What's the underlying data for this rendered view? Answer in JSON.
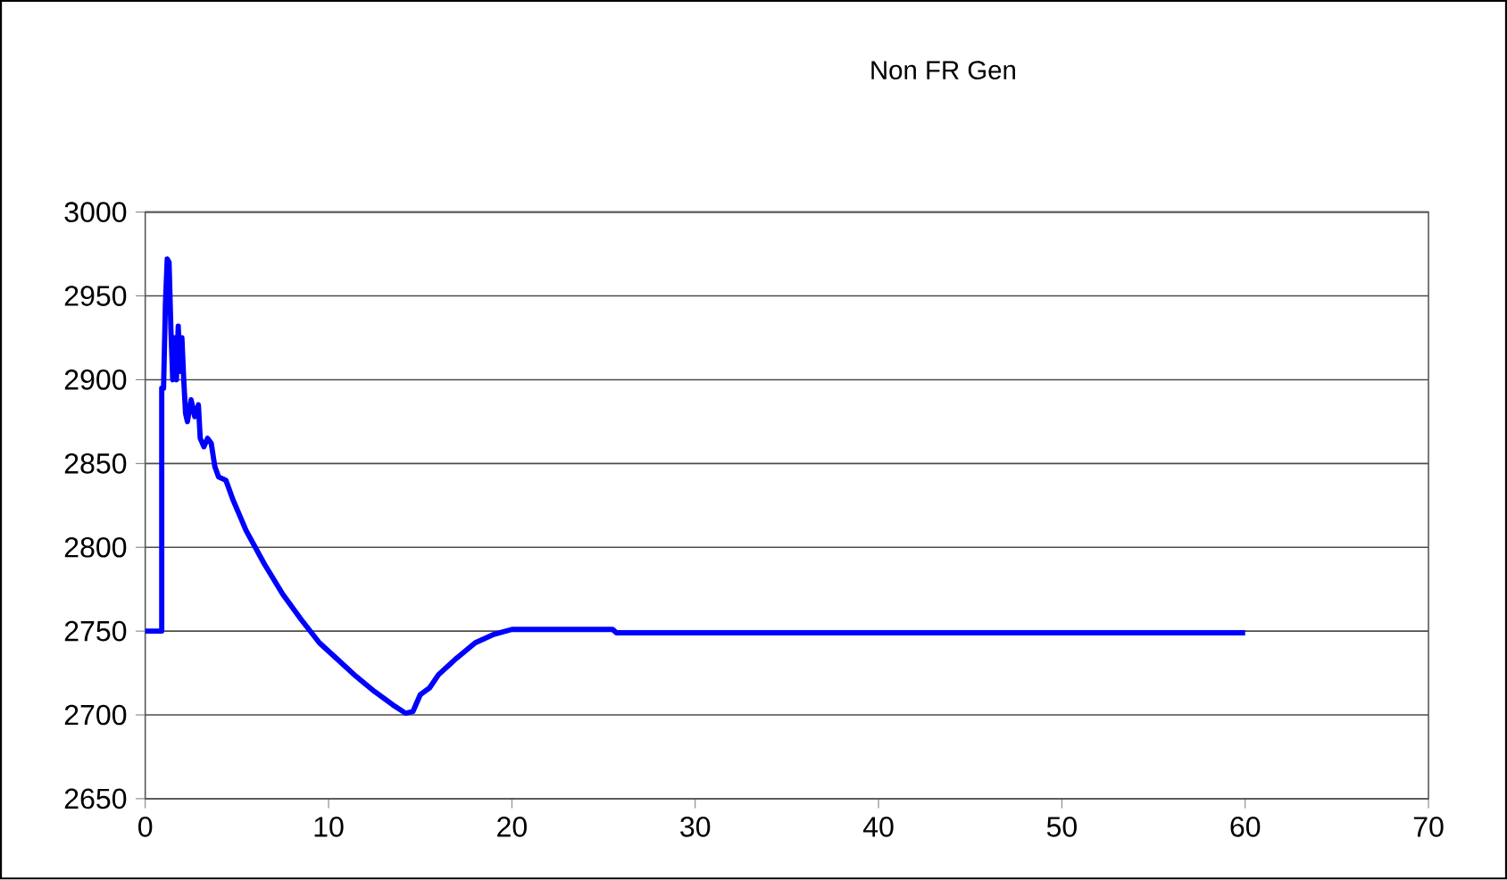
{
  "chart_data": {
    "type": "line",
    "title": "Non FR Gen",
    "x": [
      0,
      0.9,
      0.9,
      1.0,
      1.1,
      1.2,
      1.3,
      1.4,
      1.5,
      1.6,
      1.7,
      1.8,
      1.9,
      2.0,
      2.1,
      2.2,
      2.3,
      2.5,
      2.7,
      2.9,
      3.0,
      3.2,
      3.4,
      3.6,
      3.8,
      4.0,
      4.4,
      4.8,
      5.5,
      6.5,
      7.5,
      8.5,
      9.5,
      10.5,
      11.5,
      12.5,
      13.5,
      14.2,
      14.6,
      15.0,
      15.5,
      16.0,
      17.0,
      18.0,
      19.0,
      20.0,
      25.5,
      25.7,
      60
    ],
    "series": [
      {
        "color": "#0000ff",
        "values": [
          2750,
          2750,
          2895,
          2895,
          2945,
          2972,
          2970,
          2930,
          2900,
          2925,
          2900,
          2932,
          2905,
          2925,
          2900,
          2880,
          2875,
          2888,
          2878,
          2885,
          2865,
          2860,
          2865,
          2862,
          2848,
          2842,
          2840,
          2828,
          2810,
          2790,
          2772,
          2757,
          2743,
          2733,
          2723,
          2714,
          2706,
          2701,
          2702,
          2712,
          2716,
          2724,
          2734,
          2743,
          2748,
          2751,
          2751,
          2749,
          2749
        ]
      }
    ],
    "xlim": [
      0,
      70
    ],
    "xticks": [
      0,
      10,
      20,
      30,
      40,
      50,
      60,
      70
    ],
    "ylim": [
      2650,
      3000
    ],
    "yticks": [
      2650,
      2700,
      2750,
      2800,
      2850,
      2900,
      2950,
      3000
    ],
    "grid": "y",
    "legend": false,
    "marker": "none",
    "line_style": "solid"
  }
}
